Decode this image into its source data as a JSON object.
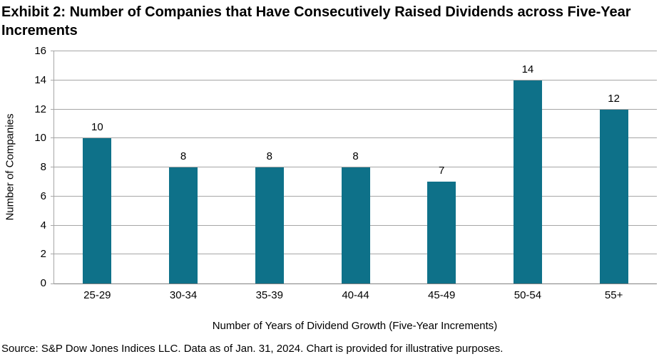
{
  "title": "Exhibit 2: Number of Companies that Have Consecutively Raised Dividends across Five-Year Increments",
  "chart_data": {
    "type": "bar",
    "categories": [
      "25-29",
      "30-34",
      "35-39",
      "40-44",
      "45-49",
      "50-54",
      "55+"
    ],
    "values": [
      10,
      8,
      8,
      8,
      7,
      14,
      12
    ],
    "title": "Exhibit 2: Number of Companies that Have Consecutively Raised Dividends across Five-Year Increments",
    "xlabel": "Number of Years of Dividend Growth (Five-Year Increments)",
    "ylabel": "Number of Companies",
    "ylim": [
      0,
      16
    ],
    "ytick_step": 2,
    "grid": true,
    "legend": false,
    "data_labels": true,
    "bar_color": "#0e7189",
    "gridline_color": "#a6a6a6",
    "axis_color": "#808080"
  },
  "source_note": "Source: S&P Dow Jones Indices LLC. Data as of Jan. 31, 2024. Chart is provided for illustrative purposes."
}
